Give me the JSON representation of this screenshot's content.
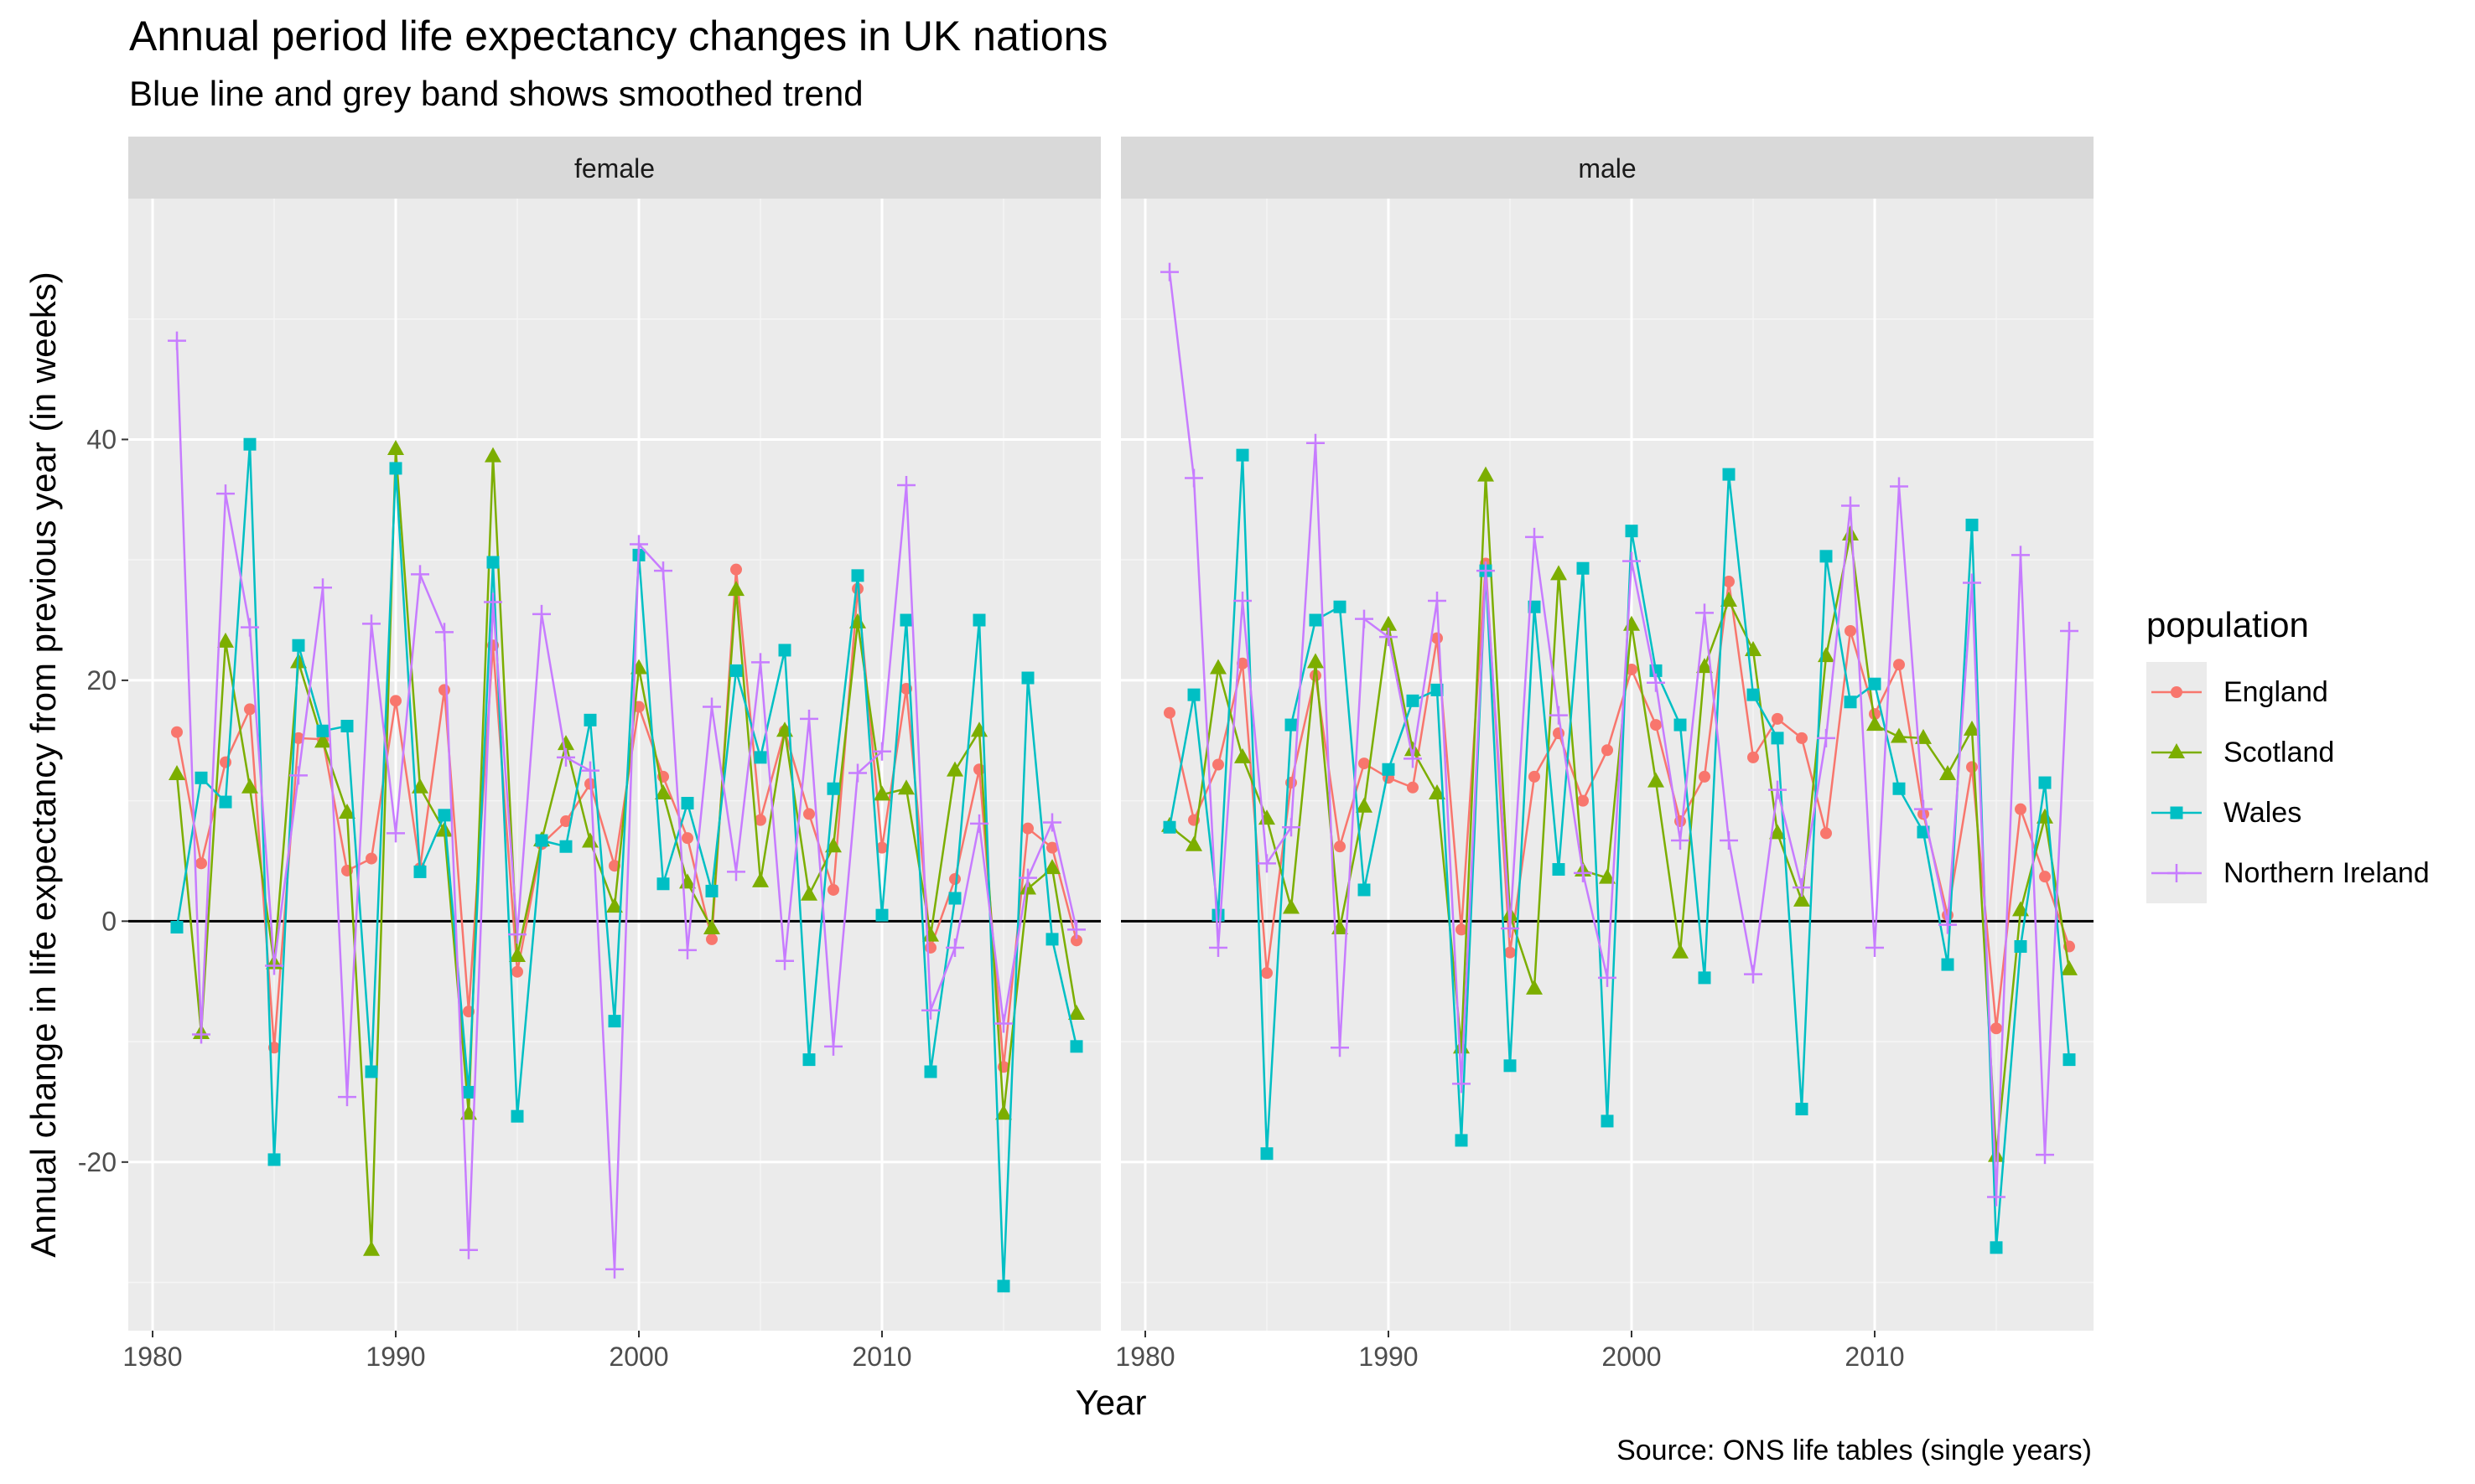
{
  "title": "Annual period life expectancy changes in UK nations",
  "subtitle": "Blue line and grey band shows smoothed trend",
  "caption": "Source: ONS life tables (single years)",
  "chart_data": {
    "type": "line",
    "xlabel": "Year",
    "ylabel": "Annual change in life expectancy from previous year (in weeks)",
    "xlim": [
      1979,
      2019
    ],
    "ylim": [
      -34,
      60
    ],
    "x_ticks": [
      1980,
      1990,
      2000,
      2010
    ],
    "y_ticks": [
      -20,
      0,
      20,
      40
    ],
    "grid": true,
    "hline_y": 0,
    "legend": {
      "title": "population",
      "placement": "right"
    },
    "x": [
      1981,
      1982,
      1983,
      1984,
      1985,
      1986,
      1987,
      1988,
      1989,
      1990,
      1991,
      1992,
      1993,
      1994,
      1995,
      1996,
      1997,
      1998,
      1999,
      2000,
      2001,
      2002,
      2003,
      2004,
      2005,
      2006,
      2007,
      2008,
      2009,
      2010,
      2011,
      2012,
      2013,
      2014,
      2015,
      2016,
      2017,
      2018
    ],
    "series_styles": [
      {
        "name": "England",
        "color": "#F8766D",
        "shape": "circle"
      },
      {
        "name": "Scotland",
        "color": "#7CAE00",
        "shape": "triangle"
      },
      {
        "name": "Wales",
        "color": "#00BFC4",
        "shape": "square"
      },
      {
        "name": "Northern Ireland",
        "color": "#C77CFF",
        "shape": "plus"
      }
    ],
    "panels": [
      {
        "label": "female",
        "series": [
          {
            "name": "England",
            "values": [
              15.7,
              4.8,
              13.2,
              17.6,
              -10.5,
              15.2,
              15.1,
              4.2,
              5.2,
              18.3,
              4.4,
              19.2,
              -7.5,
              22.9,
              -4.2,
              6.4,
              8.3,
              11.4,
              4.6,
              17.8,
              12.0,
              6.9,
              -1.5,
              29.2,
              8.4,
              15.8,
              8.9,
              2.6,
              27.6,
              6.1,
              19.3,
              -2.2,
              3.5,
              12.6,
              -12.1,
              7.7,
              6.1,
              -1.6
            ]
          },
          {
            "name": "Scotland",
            "values": [
              12.2,
              -9.3,
              23.2,
              11.1,
              -3.5,
              21.5,
              14.9,
              9.0,
              -27.3,
              39.2,
              11.1,
              7.5,
              -16.0,
              38.6,
              -2.9,
              6.7,
              14.7,
              6.6,
              1.2,
              21.0,
              10.6,
              3.2,
              -0.6,
              27.5,
              3.3,
              15.8,
              2.2,
              6.2,
              24.8,
              10.5,
              11.0,
              -1.2,
              12.5,
              15.8,
              -16.0,
              2.7,
              4.4,
              -7.7
            ]
          },
          {
            "name": "Wales",
            "values": [
              -0.5,
              11.9,
              9.9,
              39.6,
              -19.8,
              22.9,
              15.8,
              16.2,
              -12.5,
              37.6,
              4.1,
              8.8,
              -14.2,
              29.8,
              -16.2,
              6.7,
              6.2,
              16.7,
              -8.3,
              30.4,
              3.1,
              9.8,
              2.5,
              20.8,
              13.6,
              22.5,
              -11.5,
              11.0,
              28.7,
              0.5,
              25.0,
              -12.5,
              1.9,
              25.0,
              -30.3,
              20.2,
              -1.5,
              -10.4
            ]
          },
          {
            "name": "Northern Ireland",
            "values": [
              48.2,
              -9.4,
              35.5,
              24.4,
              -3.7,
              12.1,
              27.7,
              -14.6,
              24.7,
              7.3,
              28.8,
              24.0,
              -27.3,
              26.5,
              -1.1,
              25.5,
              13.6,
              12.5,
              -28.9,
              31.3,
              29.1,
              -2.4,
              17.8,
              4.1,
              21.5,
              -3.3,
              16.8,
              -10.4,
              12.3,
              14.1,
              36.2,
              -7.4,
              -2.2,
              8.1,
              -8.5,
              3.6,
              8.2,
              -0.7
            ]
          }
        ]
      },
      {
        "label": "male",
        "series": [
          {
            "name": "England",
            "values": [
              17.3,
              8.4,
              13.0,
              21.4,
              -4.3,
              11.5,
              20.4,
              6.2,
              13.1,
              11.9,
              11.1,
              23.5,
              -0.7,
              29.7,
              -2.6,
              12.0,
              15.6,
              10.0,
              14.2,
              20.9,
              16.3,
              8.3,
              12.0,
              28.2,
              13.6,
              16.8,
              15.2,
              7.3,
              24.1,
              17.2,
              21.3,
              8.9,
              0.5,
              12.8,
              -8.9,
              9.3,
              3.7,
              -2.1
            ]
          },
          {
            "name": "Scotland",
            "values": [
              7.9,
              6.3,
              21.0,
              13.6,
              8.5,
              1.1,
              21.5,
              -0.6,
              9.5,
              24.6,
              14.2,
              10.6,
              -10.5,
              37.0,
              0.5,
              -5.6,
              28.8,
              4.2,
              3.6,
              24.6,
              11.6,
              -2.6,
              21.1,
              26.6,
              22.5,
              7.3,
              1.7,
              22.0,
              32.1,
              16.3,
              15.3,
              15.2,
              12.2,
              15.9,
              -19.5,
              0.9,
              8.6,
              -4.0
            ]
          },
          {
            "name": "Wales",
            "values": [
              7.8,
              18.8,
              0.5,
              38.7,
              -19.3,
              16.3,
              25.0,
              26.1,
              2.6,
              12.6,
              18.3,
              19.2,
              -18.2,
              29.1,
              -12.0,
              26.1,
              4.3,
              29.3,
              -16.6,
              32.4,
              20.8,
              16.3,
              -4.7,
              37.1,
              18.8,
              15.2,
              -15.6,
              30.3,
              18.2,
              19.7,
              11.0,
              7.4,
              -3.6,
              32.9,
              -27.1,
              -2.1,
              11.5,
              -11.5
            ]
          },
          {
            "name": "Northern Ireland",
            "values": [
              53.9,
              36.8,
              -2.2,
              26.6,
              4.8,
              7.8,
              39.7,
              -10.5,
              25.1,
              23.6,
              13.5,
              26.6,
              -13.5,
              29.1,
              -0.6,
              31.9,
              17.1,
              4.0,
              -4.7,
              29.9,
              19.8,
              6.7,
              25.6,
              6.7,
              -4.4,
              10.9,
              2.8,
              15.2,
              34.5,
              -2.2,
              36.1,
              9.3,
              -0.3,
              28.1,
              -22.9,
              30.4,
              -19.4,
              24.1
            ]
          }
        ]
      }
    ]
  }
}
